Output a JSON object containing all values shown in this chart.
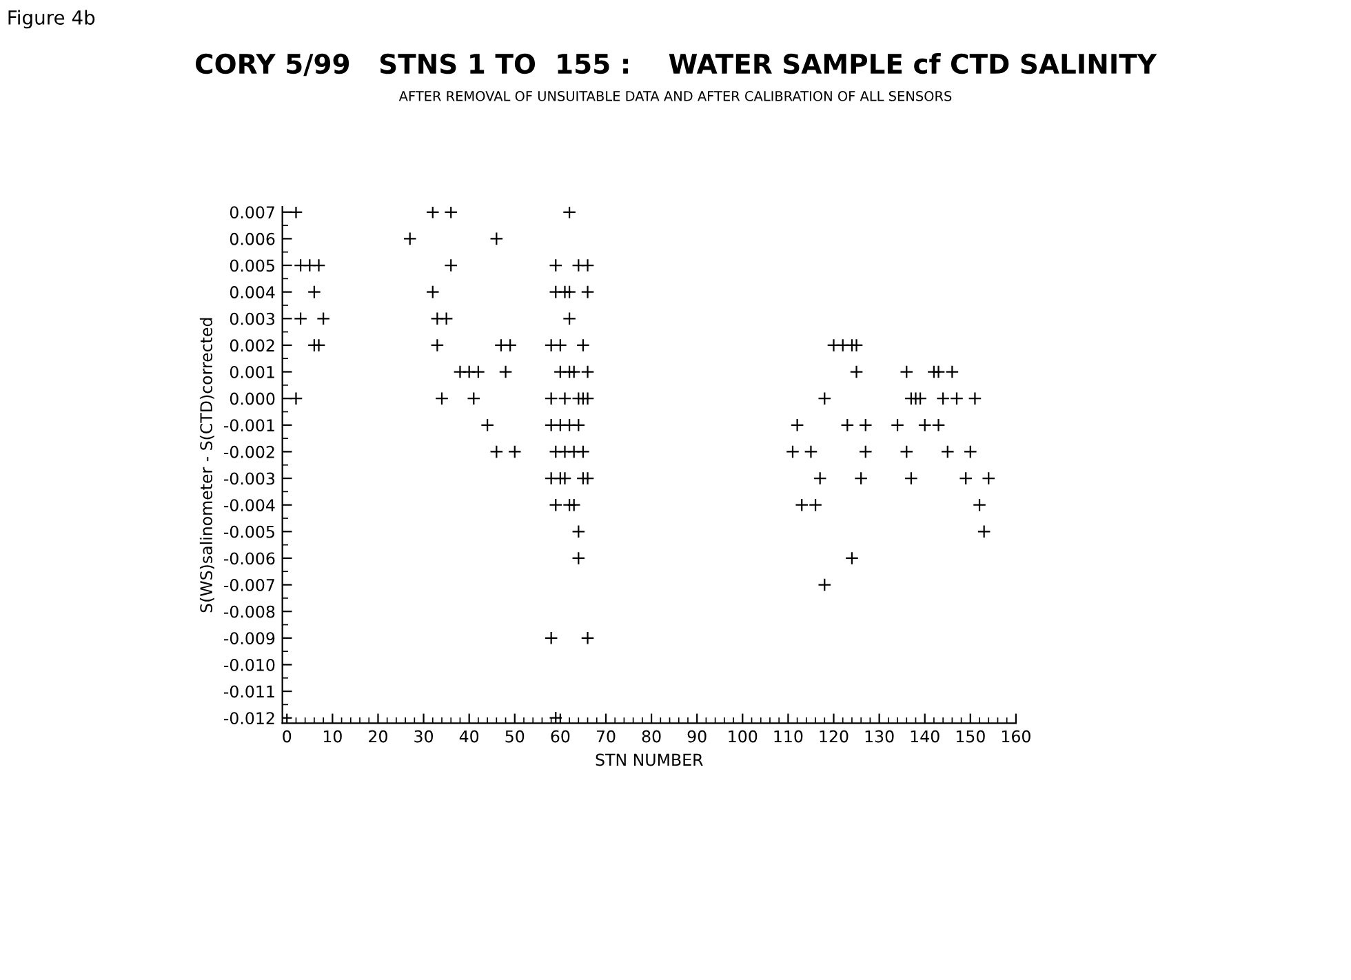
{
  "chart_data": {
    "type": "scatter",
    "title": "CORY 5/99   STNS 1 TO  155 :    WATER SAMPLE cf CTD SALINITY",
    "subtitle": "AFTER REMOVAL OF UNSUITABLE DATA AND AFTER CALIBRATION OF ALL SENSORS",
    "annotations": [
      "Figure 4b"
    ],
    "xlabel": "STN NUMBER",
    "ylabel": "S(WS)salinometer - S(CTD)corrected",
    "marker": "cross",
    "grid": false,
    "legend": false,
    "xlim": [
      -1,
      160
    ],
    "xticks": [
      0,
      10,
      20,
      30,
      40,
      50,
      60,
      70,
      80,
      90,
      100,
      110,
      120,
      130,
      140,
      150,
      160
    ],
    "ylim": [
      -0.0122,
      0.0072
    ],
    "yticks": [
      {
        "value": 0.007,
        "label": "0.007"
      },
      {
        "value": 0.006,
        "label": "0.006"
      },
      {
        "value": 0.005,
        "label": "0.005"
      },
      {
        "value": 0.004,
        "label": "0.004"
      },
      {
        "value": 0.003,
        "label": "0.003"
      },
      {
        "value": 0.002,
        "label": "0.002"
      },
      {
        "value": 0.001,
        "label": "0.001"
      },
      {
        "value": 0,
        "label": "0.000"
      },
      {
        "value": -0.001,
        "label": "-0.001"
      },
      {
        "value": -0.002,
        "label": "-0.002"
      },
      {
        "value": -0.003,
        "label": "-0.003"
      },
      {
        "value": -0.004,
        "label": "-0.004"
      },
      {
        "value": -0.005,
        "label": "-0.005"
      },
      {
        "value": -0.006,
        "label": "-0.006"
      },
      {
        "value": -0.007,
        "label": "-0.007"
      },
      {
        "value": -0.008,
        "label": "-0.008"
      },
      {
        "value": -0.009,
        "label": "-0.009"
      },
      {
        "value": -0.01,
        "label": "-0.010"
      },
      {
        "value": -0.011,
        "label": "-0.011"
      },
      {
        "value": -0.012,
        "label": "-0.012"
      }
    ],
    "series": [
      {
        "color": "#000000",
        "x": [
          2,
          32,
          36,
          62,
          27,
          46,
          3,
          5,
          7,
          36,
          59,
          64,
          66,
          6,
          32,
          59,
          61,
          62,
          66,
          3,
          8,
          33,
          35,
          62,
          6,
          7,
          33,
          47,
          49,
          58,
          60,
          65,
          38,
          40,
          42,
          48,
          60,
          62,
          63,
          66,
          2,
          34,
          41,
          58,
          61,
          64,
          65,
          66,
          44,
          58,
          60,
          62,
          64,
          46,
          50,
          59,
          61,
          63,
          65,
          58,
          60,
          61,
          65,
          66,
          59,
          62,
          63,
          64,
          64,
          58,
          66,
          59,
          120,
          122,
          124,
          125,
          125,
          136,
          142,
          143,
          146,
          118,
          137,
          138,
          139,
          144,
          147,
          151,
          112,
          123,
          127,
          134,
          140,
          143,
          111,
          115,
          127,
          136,
          145,
          150,
          117,
          126,
          137,
          149,
          154,
          113,
          116,
          152,
          153,
          124,
          118
        ],
        "values": [
          0.007,
          0.007,
          0.007,
          0.007,
          0.006,
          0.006,
          0.005,
          0.005,
          0.005,
          0.005,
          0.005,
          0.005,
          0.005,
          0.004,
          0.004,
          0.004,
          0.004,
          0.004,
          0.004,
          0.003,
          0.003,
          0.003,
          0.003,
          0.003,
          0.002,
          0.002,
          0.002,
          0.002,
          0.002,
          0.002,
          0.002,
          0.002,
          0.001,
          0.001,
          0.001,
          0.001,
          0.001,
          0.001,
          0.001,
          0.001,
          0.0,
          0.0,
          0.0,
          0.0,
          0.0,
          0.0,
          0.0,
          0.0,
          -0.001,
          -0.001,
          -0.001,
          -0.001,
          -0.001,
          -0.002,
          -0.002,
          -0.002,
          -0.002,
          -0.002,
          -0.002,
          -0.003,
          -0.003,
          -0.003,
          -0.003,
          -0.003,
          -0.004,
          -0.004,
          -0.004,
          -0.005,
          -0.006,
          -0.009,
          -0.009,
          -0.012,
          0.002,
          0.002,
          0.002,
          0.002,
          0.001,
          0.001,
          0.001,
          0.001,
          0.001,
          0.0,
          0.0,
          0.0,
          0.0,
          0.0,
          0.0,
          0.0,
          -0.001,
          -0.001,
          -0.001,
          -0.001,
          -0.001,
          -0.001,
          -0.002,
          -0.002,
          -0.002,
          -0.002,
          -0.002,
          -0.002,
          -0.003,
          -0.003,
          -0.003,
          -0.003,
          -0.003,
          -0.004,
          -0.004,
          -0.004,
          -0.005,
          -0.006,
          -0.007
        ]
      }
    ]
  }
}
